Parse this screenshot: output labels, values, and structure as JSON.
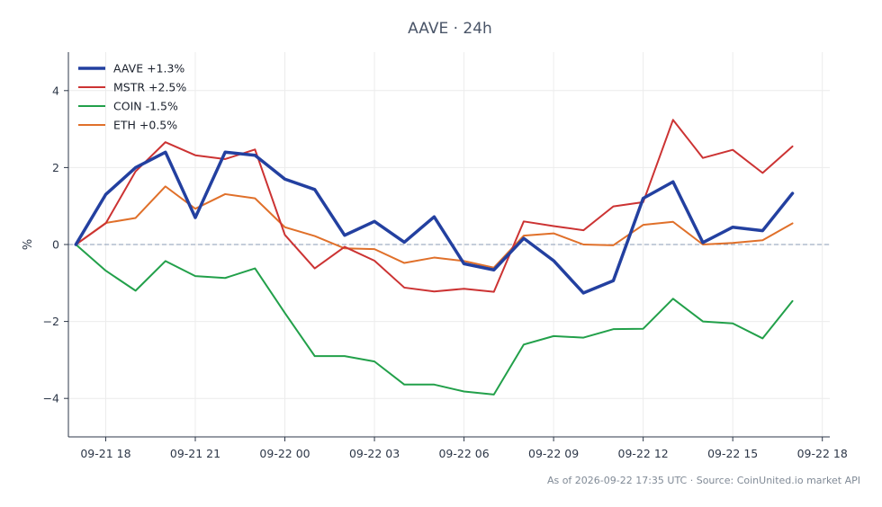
{
  "chart_data": {
    "type": "line",
    "title": "AAVE · 24h",
    "ylabel": "%",
    "xlabel": "",
    "ylim": [
      -5,
      5
    ],
    "yticks": [
      -4,
      -2,
      0,
      2,
      4
    ],
    "ytick_labels": [
      "−4",
      "−2",
      "0",
      "2",
      "4"
    ],
    "xlim": [
      "2026-09-21 16:45",
      "2026-09-22 18:15"
    ],
    "xticks": [
      "2026-09-21 18:00",
      "2026-09-21 21:00",
      "2026-09-22 00:00",
      "2026-09-22 03:00",
      "2026-09-22 06:00",
      "2026-09-22 09:00",
      "2026-09-22 12:00",
      "2026-09-22 15:00",
      "2026-09-22 18:00"
    ],
    "xtick_labels": [
      "09-21 18",
      "09-21 21",
      "09-22 00",
      "09-22 03",
      "09-22 06",
      "09-22 09",
      "09-22 12",
      "09-22 15",
      "09-22 18"
    ],
    "x": [
      "2026-09-21 17:00",
      "2026-09-21 18:00",
      "2026-09-21 19:00",
      "2026-09-21 20:00",
      "2026-09-21 21:00",
      "2026-09-21 22:00",
      "2026-09-21 23:00",
      "2026-09-22 00:00",
      "2026-09-22 01:00",
      "2026-09-22 02:00",
      "2026-09-22 03:00",
      "2026-09-22 04:00",
      "2026-09-22 05:00",
      "2026-09-22 06:00",
      "2026-09-22 07:00",
      "2026-09-22 08:00",
      "2026-09-22 09:00",
      "2026-09-22 10:00",
      "2026-09-22 11:00",
      "2026-09-22 12:00",
      "2026-09-22 13:00",
      "2026-09-22 14:00",
      "2026-09-22 15:00",
      "2026-09-22 16:00",
      "2026-09-22 17:00"
    ],
    "series": [
      {
        "name": "AAVE +1.3%",
        "color": "#2340a0",
        "width": 3.5,
        "values": [
          0,
          1.3,
          2.0,
          2.4,
          0.7,
          2.4,
          2.32,
          1.7,
          1.43,
          0.24,
          0.6,
          0.06,
          0.72,
          -0.5,
          -0.66,
          0.16,
          -0.42,
          -1.26,
          -0.94,
          1.2,
          1.63,
          0.05,
          0.45,
          0.36,
          1.33
        ]
      },
      {
        "name": "MSTR +2.5%",
        "color": "#cc3333",
        "width": 2,
        "values": [
          0,
          0.55,
          1.9,
          2.66,
          2.32,
          2.22,
          2.47,
          0.25,
          -0.62,
          -0.06,
          -0.42,
          -1.12,
          -1.22,
          -1.15,
          -1.23,
          0.6,
          0.48,
          0.37,
          0.99,
          1.1,
          3.24,
          2.25,
          2.46,
          1.86,
          2.55
        ]
      },
      {
        "name": "COIN -1.5%",
        "color": "#22a04a",
        "width": 2,
        "values": [
          0,
          -0.68,
          -1.2,
          -0.43,
          -0.82,
          -0.87,
          -0.62,
          -1.78,
          -2.9,
          -2.9,
          -3.04,
          -3.64,
          -3.64,
          -3.82,
          -3.9,
          -2.6,
          -2.38,
          -2.42,
          -2.2,
          -2.19,
          -1.41,
          -2.0,
          -2.05,
          -2.44,
          -1.47
        ]
      },
      {
        "name": "ETH +0.5%",
        "color": "#e0702a",
        "width": 2,
        "values": [
          0,
          0.56,
          0.69,
          1.51,
          0.93,
          1.31,
          1.2,
          0.45,
          0.22,
          -0.1,
          -0.12,
          -0.48,
          -0.34,
          -0.43,
          -0.6,
          0.23,
          0.29,
          0.0,
          -0.02,
          0.51,
          0.59,
          0.0,
          0.04,
          0.11,
          0.55
        ]
      }
    ],
    "zero_line": true,
    "grid": true,
    "legend_position": "top-left"
  },
  "footer": {
    "source_text": "As of 2026-09-22 17:35 UTC · Source: CoinUnited.io market API"
  }
}
